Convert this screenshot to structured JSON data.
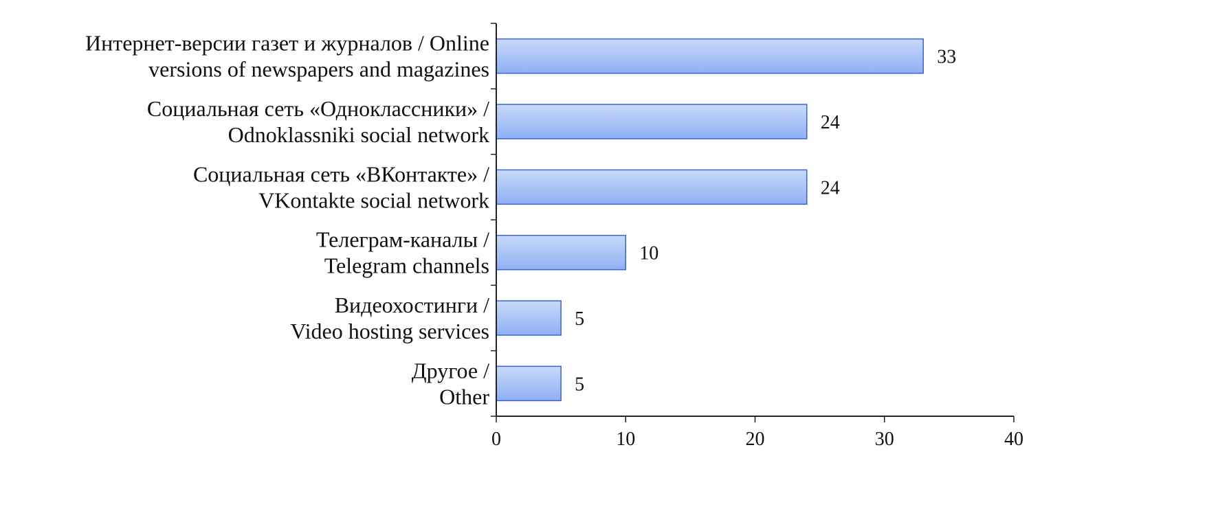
{
  "chart_data": {
    "type": "bar",
    "orientation": "horizontal",
    "categories": [
      [
        "Интернет-версии газет и журналов / Online",
        "versions of newspapers and magazines"
      ],
      [
        "Социальная сеть «Одноклассники» /",
        "Odnoklassniki social network"
      ],
      [
        "Социальная сеть «ВКонтакте» /",
        "VKontakte social network"
      ],
      [
        "Телеграм-каналы /",
        "Telegram channels"
      ],
      [
        "Видеохостинги /",
        "Video hosting services"
      ],
      [
        "Другое /",
        "Other"
      ]
    ],
    "values": [
      33,
      24,
      24,
      10,
      5,
      5
    ],
    "xlim": [
      0,
      40
    ],
    "xticks": [
      0,
      10,
      20,
      30,
      40
    ],
    "grid": false,
    "legend": "none",
    "colors": {
      "bar_fill_top": "#c9d9fb",
      "bar_fill_bottom": "#8eb0f3",
      "bar_stroke": "#3a64d8",
      "axis": "#222222"
    }
  }
}
